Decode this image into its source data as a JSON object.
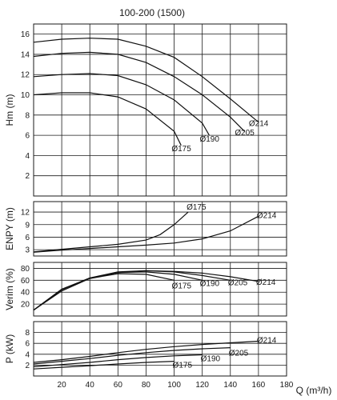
{
  "title": "100-200 (1500)",
  "xlabel": "Q (m³/h)",
  "colors": {
    "line": "#111111",
    "grid": "#1a1a1a",
    "background": "#ffffff"
  },
  "chart_data": [
    {
      "type": "line",
      "panel": "Hm",
      "ylabel": "Hm (m)",
      "xlim": [
        0,
        180
      ],
      "ylim": [
        0,
        17
      ],
      "yticks": [
        2,
        4,
        6,
        8,
        10,
        12,
        14,
        16
      ],
      "series": [
        {
          "name": "Ø214",
          "x": [
            0,
            20,
            40,
            60,
            80,
            100,
            120,
            140,
            160
          ],
          "y": [
            15.2,
            15.5,
            15.6,
            15.5,
            14.8,
            13.7,
            11.8,
            9.6,
            7.3
          ]
        },
        {
          "name": "Ø205",
          "x": [
            0,
            20,
            40,
            60,
            80,
            100,
            120,
            140,
            150
          ],
          "y": [
            13.8,
            14.1,
            14.2,
            14.0,
            13.2,
            11.8,
            10.0,
            7.8,
            6.4
          ]
        },
        {
          "name": "Ø190",
          "x": [
            0,
            20,
            40,
            60,
            80,
            100,
            120,
            125
          ],
          "y": [
            11.8,
            12.0,
            12.1,
            11.9,
            11.0,
            9.5,
            7.2,
            6.0
          ]
        },
        {
          "name": "Ø175",
          "x": [
            0,
            20,
            40,
            60,
            80,
            100,
            105
          ],
          "y": [
            10.0,
            10.2,
            10.2,
            9.8,
            8.6,
            6.4,
            5.0
          ]
        }
      ]
    },
    {
      "type": "line",
      "panel": "ENPY",
      "ylabel": "ENPY (m)",
      "xlim": [
        0,
        180
      ],
      "ylim": [
        1.5,
        14.5
      ],
      "yticks": [
        3,
        6,
        9,
        12
      ],
      "series": [
        {
          "name": "Ø175",
          "x": [
            0,
            20,
            40,
            60,
            80,
            90,
            100,
            110
          ],
          "y": [
            2.5,
            3.1,
            3.7,
            4.3,
            5.3,
            6.6,
            9.0,
            12.0
          ]
        },
        {
          "name": "Ø214",
          "x": [
            0,
            20,
            40,
            60,
            80,
            100,
            120,
            140,
            160
          ],
          "y": [
            2.4,
            2.9,
            3.3,
            3.7,
            4.1,
            4.6,
            5.6,
            7.5,
            11.0
          ]
        }
      ]
    },
    {
      "type": "line",
      "panel": "Verim",
      "ylabel": "Verim (%)",
      "xlim": [
        0,
        180
      ],
      "ylim": [
        0,
        90
      ],
      "yticks": [
        20,
        40,
        60,
        80
      ],
      "series": [
        {
          "name": "Ø175",
          "x": [
            0,
            20,
            40,
            60,
            80,
            100
          ],
          "y": [
            10,
            45,
            63,
            71,
            70,
            60
          ]
        },
        {
          "name": "Ø190",
          "x": [
            0,
            20,
            40,
            60,
            80,
            100,
            120
          ],
          "y": [
            10,
            45,
            64,
            73,
            74,
            70,
            60
          ]
        },
        {
          "name": "Ø205",
          "x": [
            0,
            20,
            40,
            60,
            80,
            100,
            120,
            140
          ],
          "y": [
            10,
            44,
            64,
            74,
            76,
            74,
            68,
            60
          ]
        },
        {
          "name": "Ø214",
          "x": [
            0,
            20,
            40,
            60,
            80,
            100,
            120,
            140,
            160
          ],
          "y": [
            10,
            42,
            63,
            73,
            76,
            75,
            72,
            66,
            58
          ]
        }
      ]
    },
    {
      "type": "line",
      "panel": "P",
      "ylabel": "P (kW)",
      "xlim": [
        0,
        180
      ],
      "ylim": [
        0,
        10
      ],
      "yticks": [
        2,
        4,
        6,
        8
      ],
      "series": [
        {
          "name": "Ø214",
          "x": [
            0,
            20,
            40,
            60,
            80,
            100,
            120,
            140,
            160
          ],
          "y": [
            2.5,
            3.0,
            3.6,
            4.3,
            4.9,
            5.4,
            5.8,
            6.1,
            6.4
          ]
        },
        {
          "name": "Ø205",
          "x": [
            0,
            20,
            40,
            60,
            80,
            100,
            120,
            140
          ],
          "y": [
            2.2,
            2.7,
            3.2,
            3.8,
            4.3,
            4.7,
            5.0,
            5.2
          ]
        },
        {
          "name": "Ø190",
          "x": [
            0,
            20,
            40,
            60,
            80,
            100,
            120
          ],
          "y": [
            1.7,
            2.1,
            2.5,
            3.0,
            3.4,
            3.7,
            3.9
          ]
        },
        {
          "name": "Ø175",
          "x": [
            0,
            20,
            40,
            60,
            80,
            100
          ],
          "y": [
            1.3,
            1.6,
            1.9,
            2.2,
            2.5,
            2.7
          ]
        }
      ]
    }
  ],
  "xticks": [
    20,
    40,
    60,
    80,
    100,
    120,
    140,
    160,
    180
  ]
}
